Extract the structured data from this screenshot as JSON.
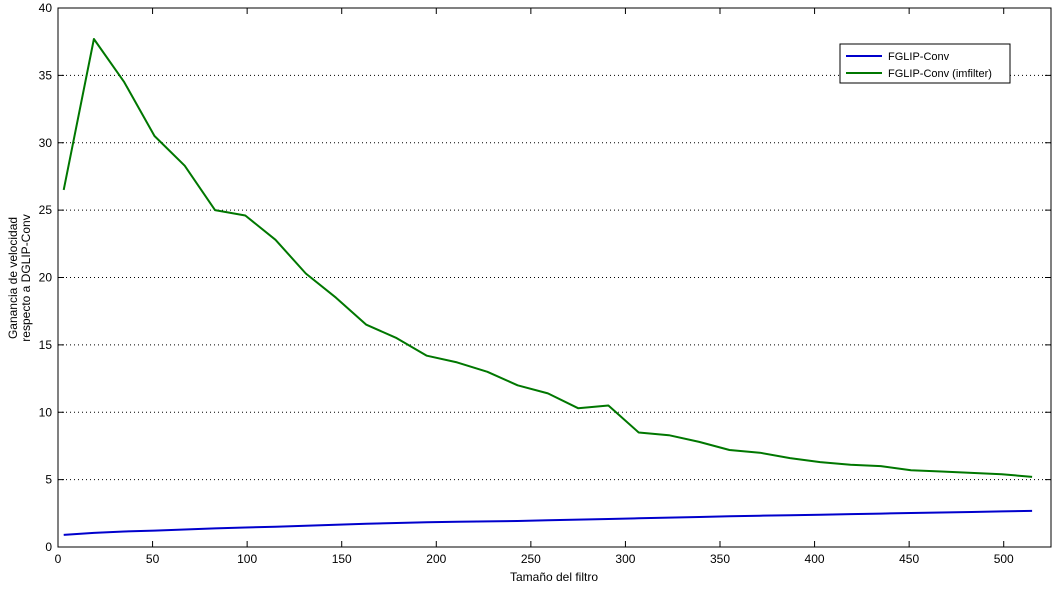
{
  "chart_data": {
    "type": "line",
    "title": "",
    "xlabel": "Tamaño del filtro",
    "ylabel_lines": [
      "Ganancia de velocidad",
      "respecto a DGLIP-Conv"
    ],
    "xlim": [
      0,
      525
    ],
    "ylim": [
      0,
      40
    ],
    "xticks": [
      0,
      50,
      100,
      150,
      200,
      250,
      300,
      350,
      400,
      450,
      500
    ],
    "yticks": [
      0,
      5,
      10,
      15,
      20,
      25,
      30,
      35,
      40
    ],
    "grid": "y-dotted",
    "legend_position": "top-right",
    "series": [
      {
        "name": "FGLIP-Conv",
        "color": "#0000cc",
        "x": [
          3,
          19,
          35,
          51,
          67,
          83,
          99,
          115,
          131,
          147,
          163,
          179,
          195,
          211,
          227,
          243,
          259,
          275,
          291,
          307,
          323,
          339,
          355,
          371,
          387,
          403,
          419,
          435,
          451,
          467,
          483,
          499,
          515
        ],
        "y": [
          0.9,
          1.05,
          1.15,
          1.22,
          1.3,
          1.38,
          1.45,
          1.5,
          1.58,
          1.65,
          1.72,
          1.78,
          1.83,
          1.87,
          1.9,
          1.93,
          1.98,
          2.03,
          2.08,
          2.13,
          2.18,
          2.23,
          2.28,
          2.32,
          2.36,
          2.4,
          2.44,
          2.48,
          2.52,
          2.56,
          2.6,
          2.64,
          2.68
        ]
      },
      {
        "name": "FGLIP-Conv (imfilter)",
        "color": "#007700",
        "x": [
          3,
          19,
          35,
          51,
          67,
          83,
          99,
          115,
          131,
          147,
          163,
          179,
          195,
          211,
          227,
          243,
          259,
          275,
          291,
          307,
          323,
          339,
          355,
          371,
          387,
          403,
          419,
          435,
          451,
          467,
          483,
          499,
          515
        ],
        "y": [
          26.5,
          37.7,
          34.5,
          30.5,
          28.3,
          25.0,
          24.6,
          22.8,
          20.3,
          18.5,
          16.5,
          15.5,
          14.2,
          13.7,
          13.0,
          12.0,
          11.4,
          10.3,
          10.5,
          8.5,
          8.3,
          7.8,
          7.2,
          7.0,
          6.6,
          6.3,
          6.1,
          6.0,
          5.7,
          5.6,
          5.5,
          5.4,
          5.2
        ]
      }
    ]
  }
}
